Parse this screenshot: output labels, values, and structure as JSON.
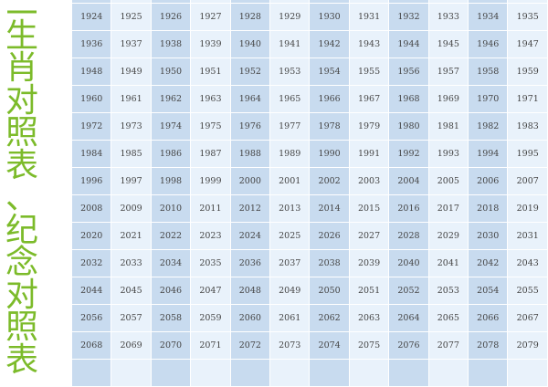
{
  "title": {
    "text": "二生肖对照表、纪念对照表"
  },
  "colors": {
    "title": "#7cbb2a",
    "column_dark": "#c8dbef",
    "column_light": "#e9f2fb",
    "text": "#444444"
  },
  "table": {
    "columns": 12,
    "first_year": 1924,
    "last_year": 2079,
    "rows": [
      [
        "1924",
        "1925",
        "1926",
        "1927",
        "1928",
        "1929",
        "1930",
        "1931",
        "1932",
        "1933",
        "1934",
        "1935"
      ],
      [
        "1936",
        "1937",
        "1938",
        "1939",
        "1940",
        "1941",
        "1942",
        "1943",
        "1944",
        "1945",
        "1946",
        "1947"
      ],
      [
        "1948",
        "1949",
        "1950",
        "1951",
        "1952",
        "1953",
        "1954",
        "1955",
        "1956",
        "1957",
        "1958",
        "1959"
      ],
      [
        "1960",
        "1961",
        "1962",
        "1963",
        "1964",
        "1965",
        "1966",
        "1967",
        "1968",
        "1969",
        "1970",
        "1971"
      ],
      [
        "1972",
        "1973",
        "1974",
        "1975",
        "1976",
        "1977",
        "1978",
        "1979",
        "1980",
        "1981",
        "1982",
        "1983"
      ],
      [
        "1984",
        "1985",
        "1986",
        "1987",
        "1988",
        "1989",
        "1990",
        "1991",
        "1992",
        "1993",
        "1994",
        "1995"
      ],
      [
        "1996",
        "1997",
        "1998",
        "1999",
        "2000",
        "2001",
        "2002",
        "2003",
        "2004",
        "2005",
        "2006",
        "2007"
      ],
      [
        "2008",
        "2009",
        "2010",
        "2011",
        "2012",
        "2013",
        "2014",
        "2015",
        "2016",
        "2017",
        "2018",
        "2019"
      ],
      [
        "2020",
        "2021",
        "2022",
        "2023",
        "2024",
        "2025",
        "2026",
        "2027",
        "2028",
        "2029",
        "2030",
        "2031"
      ],
      [
        "2032",
        "2033",
        "2034",
        "2035",
        "2036",
        "2037",
        "2038",
        "2039",
        "2040",
        "2041",
        "2042",
        "2043"
      ],
      [
        "2044",
        "2045",
        "2046",
        "2047",
        "2048",
        "2049",
        "2050",
        "2051",
        "2052",
        "2053",
        "2054",
        "2055"
      ],
      [
        "2056",
        "2057",
        "2058",
        "2059",
        "2060",
        "2061",
        "2062",
        "2063",
        "2064",
        "2065",
        "2066",
        "2067"
      ],
      [
        "2068",
        "2069",
        "2070",
        "2071",
        "2072",
        "2073",
        "2074",
        "2075",
        "2076",
        "2077",
        "2078",
        "2079"
      ]
    ]
  }
}
